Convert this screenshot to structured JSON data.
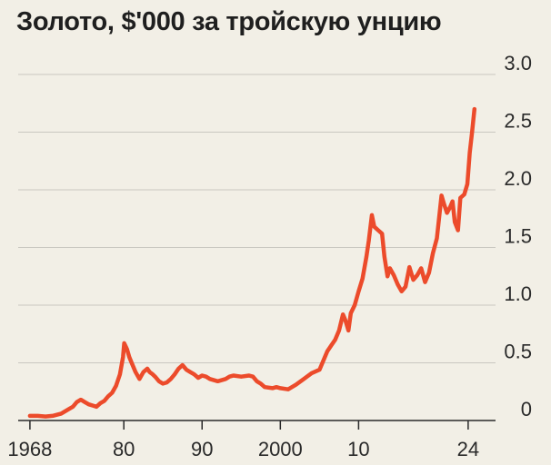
{
  "chart_data": {
    "type": "line",
    "title": "Золото, $'000 за тройскую унцию",
    "xlabel": "",
    "ylabel": "",
    "xlim": [
      1966.5,
      2027.5
    ],
    "ylim": [
      0,
      3.0
    ],
    "yticks": [
      {
        "value": 0,
        "label": "0"
      },
      {
        "value": 0.5,
        "label": "0.5"
      },
      {
        "value": 1.0,
        "label": "1.0"
      },
      {
        "value": 1.5,
        "label": "1.5"
      },
      {
        "value": 2.0,
        "label": "2.0"
      },
      {
        "value": 2.5,
        "label": "2.5"
      },
      {
        "value": 3.0,
        "label": "3.0"
      }
    ],
    "xticks": [
      {
        "value": 1968,
        "label": "1968"
      },
      {
        "value": 1980,
        "label": "80"
      },
      {
        "value": 1990,
        "label": "90"
      },
      {
        "value": 2000,
        "label": "2000"
      },
      {
        "value": 2010,
        "label": "10"
      },
      {
        "value": 2024,
        "label": "24"
      }
    ],
    "grid": true,
    "legend": "none",
    "series": [
      {
        "color": "#ec4b2b",
        "x": [
          1968.0,
          1969.0,
          1970.0,
          1971.0,
          1972.0,
          1973.0,
          1973.5,
          1974.0,
          1974.5,
          1975.0,
          1975.5,
          1976.0,
          1976.5,
          1977.0,
          1977.5,
          1978.0,
          1978.5,
          1979.0,
          1979.5,
          1979.9,
          1980.05,
          1980.4,
          1980.7,
          1981.0,
          1981.5,
          1982.0,
          1982.5,
          1983.0,
          1983.3,
          1983.7,
          1984.0,
          1984.5,
          1985.0,
          1985.5,
          1986.0,
          1986.5,
          1987.0,
          1987.5,
          1988.0,
          1988.5,
          1989.0,
          1989.5,
          1990.0,
          1990.5,
          1991.0,
          1992.0,
          1993.0,
          1993.5,
          1994.0,
          1995.0,
          1996.0,
          1996.5,
          1997.0,
          1997.5,
          1998.0,
          1999.0,
          1999.5,
          2000.0,
          2001.0,
          2002.0,
          2003.0,
          2004.0,
          2005.0,
          2006.0,
          2006.5,
          2007.0,
          2007.5,
          2008.0,
          2008.3,
          2008.7,
          2009.0,
          2009.5,
          2010.0,
          2010.5,
          2011.0,
          2011.3,
          2011.7,
          2012.0,
          2012.5,
          2013.0,
          2013.3,
          2013.7,
          2014.0,
          2014.5,
          2015.0,
          2015.5,
          2016.0,
          2016.5,
          2017.0,
          2017.5,
          2018.0,
          2018.5,
          2019.0,
          2019.5,
          2020.0,
          2020.6,
          2020.9,
          2021.3,
          2021.7,
          2022.0,
          2022.3,
          2022.7,
          2023.0,
          2023.5,
          2023.9,
          2024.2,
          2024.5,
          2024.8
        ],
        "values": [
          0.04,
          0.04,
          0.035,
          0.042,
          0.06,
          0.1,
          0.12,
          0.16,
          0.18,
          0.16,
          0.14,
          0.13,
          0.12,
          0.15,
          0.17,
          0.21,
          0.24,
          0.3,
          0.4,
          0.55,
          0.67,
          0.62,
          0.55,
          0.5,
          0.42,
          0.36,
          0.42,
          0.45,
          0.42,
          0.4,
          0.38,
          0.34,
          0.32,
          0.33,
          0.36,
          0.4,
          0.45,
          0.48,
          0.44,
          0.42,
          0.4,
          0.37,
          0.39,
          0.38,
          0.36,
          0.34,
          0.36,
          0.38,
          0.39,
          0.38,
          0.39,
          0.38,
          0.34,
          0.32,
          0.29,
          0.28,
          0.29,
          0.28,
          0.27,
          0.31,
          0.36,
          0.41,
          0.44,
          0.6,
          0.65,
          0.7,
          0.78,
          0.92,
          0.87,
          0.78,
          0.93,
          1.0,
          1.12,
          1.23,
          1.42,
          1.56,
          1.78,
          1.68,
          1.65,
          1.62,
          1.42,
          1.25,
          1.32,
          1.26,
          1.18,
          1.12,
          1.16,
          1.33,
          1.22,
          1.26,
          1.32,
          1.2,
          1.28,
          1.45,
          1.58,
          1.95,
          1.88,
          1.8,
          1.85,
          1.9,
          1.72,
          1.65,
          1.93,
          1.96,
          2.05,
          2.32,
          2.5,
          2.7
        ]
      }
    ]
  }
}
